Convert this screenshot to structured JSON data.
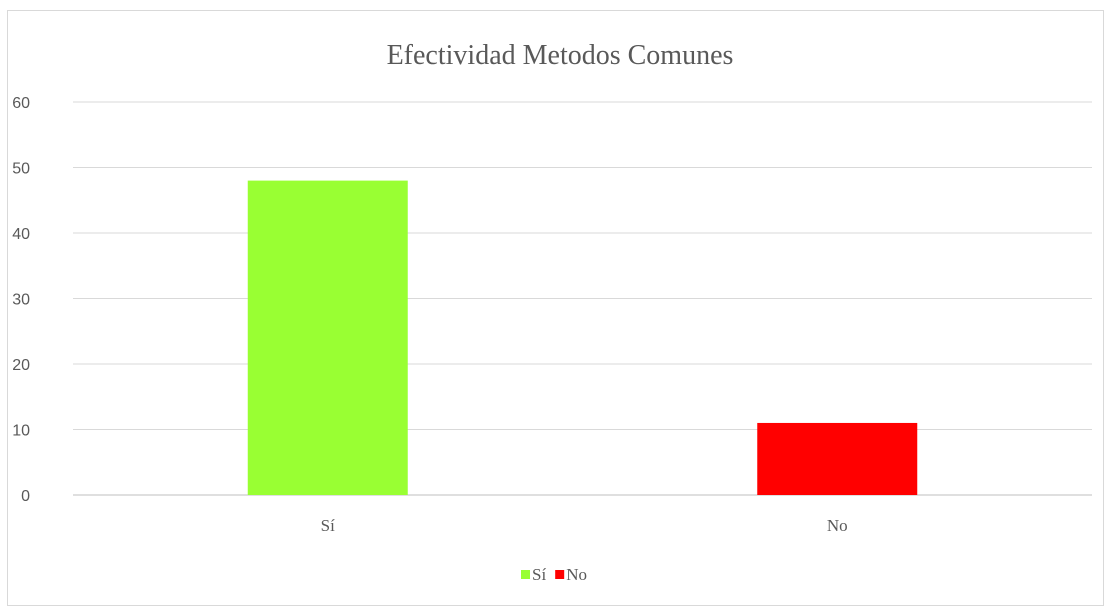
{
  "chart_data": {
    "type": "bar",
    "title": "Efectividad Metodos Comunes",
    "categories": [
      "Sí",
      "No"
    ],
    "values": [
      48,
      11
    ],
    "colors": [
      "#99ff33",
      "#ff0000"
    ],
    "ylim": [
      0,
      60
    ],
    "yticks": [
      0,
      10,
      20,
      30,
      40,
      50,
      60
    ],
    "grid": true,
    "legend": {
      "position": "bottom",
      "entries": [
        {
          "label": "Sí",
          "color": "#99ff33"
        },
        {
          "label": "No",
          "color": "#ff0000"
        }
      ]
    }
  }
}
